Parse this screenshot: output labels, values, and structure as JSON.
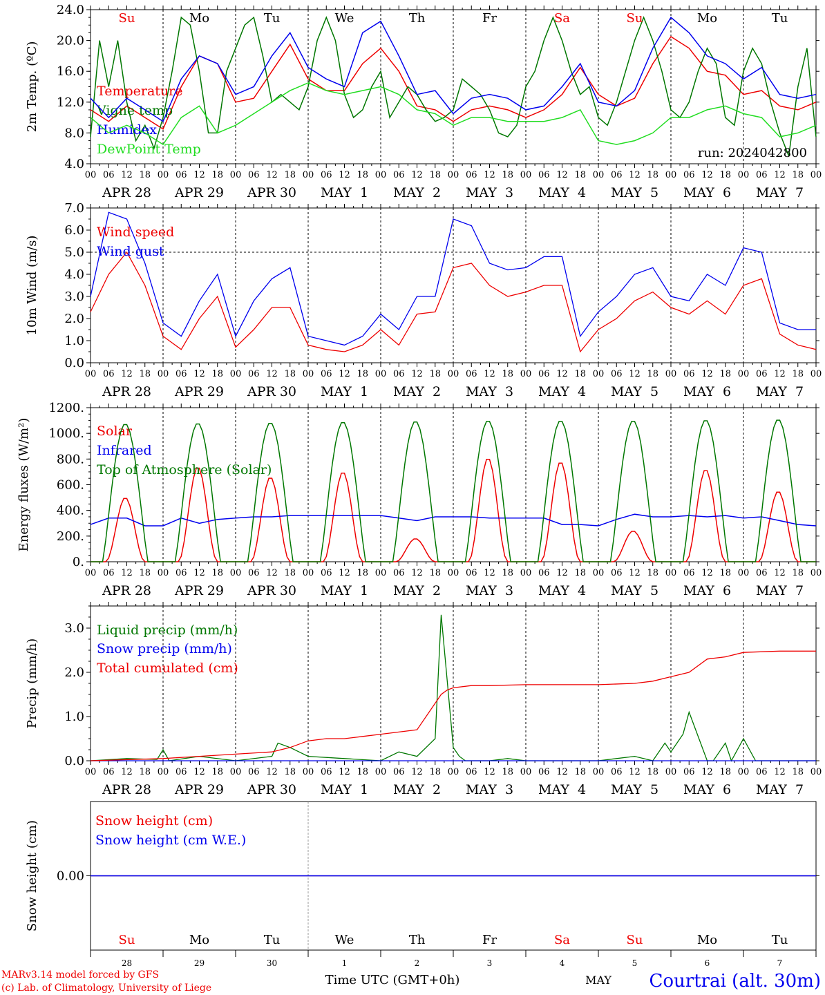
{
  "colors": {
    "red": "#ee0000",
    "green": "#007700",
    "blue": "#0000ee",
    "lightgreen": "#22dd22",
    "purple": "#7a2a7a",
    "axis": "#000000"
  },
  "days": [
    "Su",
    "Mo",
    "Tu",
    "We",
    "Th",
    "Fr",
    "Sa",
    "Su",
    "Mo",
    "Tu"
  ],
  "weekend_days": [
    0,
    6,
    7
  ],
  "date_labels": [
    "APR 28",
    "APR 29",
    "APR 30",
    "MAY  1",
    "MAY  2",
    "MAY  3",
    "MAY  4",
    "MAY  5",
    "MAY  6",
    "MAY  7"
  ],
  "hour_ticks": [
    "00",
    "06",
    "12",
    "18"
  ],
  "final_tick": "00",
  "day_numbers": [
    "28",
    "29",
    "30",
    "1",
    "2",
    "3",
    "4",
    "5",
    "6",
    "7"
  ],
  "bottom": {
    "credit1": "MARv3.14 model forced by GFS",
    "credit2": "(c) Lab. of Climatology, University of Liege",
    "time_label": "Time UTC (GMT+0h)",
    "month": "MAY",
    "station": "Courtrai (alt. 30m)"
  },
  "chart_data": [
    {
      "type": "line",
      "ylabel": "2m Temp. (ºC)",
      "ylim": [
        4,
        24
      ],
      "yticks": [
        "4.0",
        "8.0",
        "12.0",
        "16.0",
        "20.0",
        "24.0"
      ],
      "annotation": "run: 2024042800",
      "x_hours_from": "2024-04-28 00 UTC",
      "series": [
        {
          "name": "Temperature",
          "color": "red",
          "x": [
            0,
            6,
            12,
            18,
            24,
            30,
            36,
            42,
            48,
            54,
            60,
            66,
            72,
            78,
            84,
            90,
            96,
            102,
            108,
            114,
            120,
            126,
            132,
            138,
            144,
            150,
            156,
            162,
            168,
            174,
            180,
            186,
            192,
            198,
            204,
            210,
            216,
            222,
            228,
            234,
            240
          ],
          "values": [
            11,
            9.5,
            11.5,
            10,
            8.5,
            14,
            18,
            17,
            12,
            12.5,
            16,
            19.5,
            15,
            13.5,
            13.5,
            17,
            19,
            16,
            11.5,
            11,
            9.5,
            11,
            11.5,
            11,
            10,
            11,
            13,
            16.5,
            13,
            11.5,
            12.5,
            17,
            20.5,
            19,
            16,
            15.5,
            13,
            13.5,
            11.5,
            11,
            12
          ]
        },
        {
          "name": "Vigne temp",
          "color": "green",
          "x": [
            0,
            3,
            6,
            9,
            12,
            15,
            18,
            21,
            24,
            27,
            30,
            33,
            36,
            39,
            42,
            45,
            48,
            51,
            54,
            57,
            60,
            63,
            66,
            69,
            72,
            75,
            78,
            81,
            84,
            87,
            90,
            93,
            96,
            99,
            102,
            105,
            108,
            111,
            114,
            117,
            120,
            123,
            126,
            129,
            132,
            135,
            138,
            141,
            144,
            147,
            150,
            153,
            156,
            159,
            162,
            165,
            168,
            171,
            174,
            177,
            180,
            183,
            186,
            189,
            192,
            195,
            198,
            201,
            204,
            207,
            210,
            213,
            216,
            219,
            222,
            225,
            228,
            231,
            234,
            237,
            240
          ],
          "values": [
            7.5,
            20,
            14,
            20,
            12,
            7,
            9,
            6,
            10,
            16,
            23,
            22,
            16,
            8,
            8,
            16,
            19,
            22,
            23,
            18,
            12,
            13,
            12,
            11,
            14,
            20,
            23,
            20,
            13,
            10,
            11,
            14,
            16,
            10,
            12,
            14,
            13,
            11,
            9.5,
            10,
            11,
            15,
            14,
            13,
            11,
            8,
            7.5,
            9,
            14,
            16,
            20,
            23,
            20,
            16,
            13,
            14,
            10,
            9,
            12,
            16,
            20,
            23,
            20,
            16,
            11,
            10,
            12,
            16,
            19,
            17,
            10,
            9,
            16,
            19,
            17,
            12,
            8,
            5,
            14,
            19,
            7.5
          ]
        },
        {
          "name": "Humidex",
          "color": "blue",
          "x": [
            0,
            6,
            12,
            18,
            24,
            30,
            36,
            42,
            48,
            54,
            60,
            66,
            72,
            78,
            84,
            90,
            96,
            102,
            108,
            114,
            120,
            126,
            132,
            138,
            144,
            150,
            156,
            162,
            168,
            174,
            180,
            186,
            192,
            198,
            204,
            210,
            216,
            222,
            228,
            234,
            240
          ],
          "values": [
            12.5,
            10,
            12.5,
            11,
            9.5,
            15,
            18,
            17,
            13,
            14,
            18,
            21,
            16.5,
            15,
            14,
            21,
            22.5,
            18,
            13,
            13.5,
            10.5,
            12.5,
            13,
            12.5,
            11,
            11.5,
            14,
            17,
            12,
            11.5,
            13.5,
            19,
            23,
            21,
            18,
            17,
            15,
            16.5,
            13,
            12.5,
            13
          ]
        },
        {
          "name": "DewPoint Temp",
          "color": "lightgreen",
          "x": [
            0,
            6,
            12,
            18,
            24,
            30,
            36,
            42,
            48,
            54,
            60,
            66,
            72,
            78,
            84,
            90,
            96,
            102,
            108,
            114,
            120,
            126,
            132,
            138,
            144,
            150,
            156,
            162,
            168,
            174,
            180,
            186,
            192,
            198,
            204,
            210,
            216,
            222,
            228,
            234,
            240
          ],
          "values": [
            10,
            8,
            9,
            8,
            6.5,
            10,
            11.5,
            8,
            9,
            10.5,
            12,
            13.5,
            14.5,
            13.5,
            13,
            13.5,
            14,
            13,
            11,
            10.5,
            9,
            10,
            10,
            9.5,
            9.5,
            9.5,
            10,
            11,
            7,
            6.5,
            7,
            8,
            10,
            10,
            11,
            11.5,
            10.5,
            10,
            7.5,
            8,
            9
          ]
        }
      ]
    },
    {
      "type": "line",
      "ylabel": "10m Wind (m/s)",
      "ylim": [
        0,
        7
      ],
      "yticks": [
        "0.0",
        "1.0",
        "2.0",
        "3.0",
        "4.0",
        "5.0",
        "6.0",
        "7.0"
      ],
      "ref_line": 5,
      "x_hours_from": "2024-04-28 00 UTC",
      "series": [
        {
          "name": "Wind speed",
          "color": "red",
          "x": [
            0,
            6,
            12,
            18,
            24,
            30,
            36,
            42,
            48,
            54,
            60,
            66,
            72,
            78,
            84,
            90,
            96,
            102,
            108,
            114,
            120,
            126,
            132,
            138,
            144,
            150,
            156,
            162,
            168,
            174,
            180,
            186,
            192,
            198,
            204,
            210,
            216,
            222,
            228,
            234,
            240
          ],
          "values": [
            2.3,
            4,
            5,
            3.5,
            1.2,
            0.6,
            2,
            3,
            0.7,
            1.5,
            2.5,
            2.5,
            0.8,
            0.6,
            0.5,
            0.8,
            1.5,
            0.8,
            2.2,
            2.3,
            4.3,
            4.5,
            3.5,
            3,
            3.2,
            3.5,
            3.5,
            0.5,
            1.5,
            2,
            2.8,
            3.2,
            2.5,
            2.2,
            2.8,
            2.2,
            3.5,
            3.8,
            1.3,
            0.8,
            0.6
          ]
        },
        {
          "name": "Wind gust",
          "color": "blue",
          "x": [
            0,
            6,
            12,
            18,
            24,
            30,
            36,
            42,
            48,
            54,
            60,
            66,
            72,
            78,
            84,
            90,
            96,
            102,
            108,
            114,
            120,
            126,
            132,
            138,
            144,
            150,
            156,
            162,
            168,
            174,
            180,
            186,
            192,
            198,
            204,
            210,
            216,
            222,
            228,
            234,
            240
          ],
          "values": [
            3,
            6.8,
            6.5,
            4.5,
            1.8,
            1.2,
            2.8,
            4,
            1.2,
            2.8,
            3.8,
            4.3,
            1.2,
            1,
            0.8,
            1.2,
            2.2,
            1.5,
            3,
            3,
            6.5,
            6.2,
            4.5,
            4.2,
            4.3,
            4.8,
            4.8,
            1.2,
            2.3,
            3,
            4,
            4.3,
            3,
            2.8,
            4,
            3.5,
            5.2,
            5,
            1.8,
            1.5,
            1.5
          ]
        }
      ]
    },
    {
      "type": "line",
      "ylabel": "Energy fluxes (W/m²)",
      "ylim": [
        0,
        1200
      ],
      "yticks": [
        "0.",
        "200.",
        "400.",
        "600.",
        "800.",
        "1000.",
        "1200."
      ],
      "x_hours_from": "2024-04-28 00 UTC",
      "series": [
        {
          "name": "Solar",
          "color": "red",
          "daily_peak": [
            500,
            740,
            660,
            700,
            180,
            810,
            780,
            240,
            720,
            550
          ]
        },
        {
          "name": "Infrared",
          "color": "blue",
          "x": [
            0,
            6,
            12,
            18,
            24,
            30,
            36,
            42,
            48,
            54,
            60,
            66,
            72,
            78,
            84,
            90,
            96,
            102,
            108,
            114,
            120,
            126,
            132,
            138,
            144,
            150,
            156,
            162,
            168,
            174,
            180,
            186,
            192,
            198,
            204,
            210,
            216,
            222,
            228,
            234,
            240
          ],
          "values": [
            290,
            340,
            340,
            280,
            280,
            340,
            300,
            330,
            340,
            350,
            350,
            360,
            360,
            360,
            360,
            360,
            360,
            340,
            320,
            350,
            350,
            350,
            340,
            340,
            340,
            340,
            290,
            290,
            280,
            330,
            370,
            350,
            350,
            360,
            350,
            360,
            340,
            350,
            320,
            290,
            280
          ]
        },
        {
          "name": "Top of Atmosphere (Solar)",
          "color": "green",
          "daily_peak": [
            1075,
            1080,
            1085,
            1090,
            1095,
            1100,
            1100,
            1100,
            1105,
            1110
          ]
        }
      ]
    },
    {
      "type": "line",
      "ylabel": "Precip (mm/h)",
      "ylim": [
        0,
        3.5
      ],
      "yticks": [
        "0.0",
        "1.0",
        "2.0",
        "3.0"
      ],
      "x_hours_from": "2024-04-28 00 UTC",
      "series": [
        {
          "name": "Liquid precip (mm/h)",
          "color": "green",
          "x": [
            0,
            12,
            22,
            24,
            26,
            36,
            48,
            60,
            62,
            66,
            72,
            84,
            96,
            102,
            108,
            114,
            116,
            118,
            120,
            121,
            122,
            124,
            126,
            132,
            138,
            144,
            150,
            160,
            168,
            180,
            186,
            190,
            192,
            196,
            198,
            204,
            206,
            210,
            212,
            216,
            220,
            222,
            224,
            230,
            240
          ],
          "values": [
            0,
            0.05,
            0.03,
            0.25,
            0,
            0.1,
            0,
            0.1,
            0.4,
            0.3,
            0.1,
            0.05,
            0,
            0.2,
            0.1,
            0.5,
            3.3,
            1.8,
            0.3,
            0.2,
            0.1,
            0,
            0,
            0,
            0.05,
            0,
            0,
            0,
            0,
            0.1,
            0,
            0.4,
            0.2,
            0.6,
            1.1,
            0,
            0,
            0.4,
            0,
            0.5,
            0,
            0,
            0,
            0,
            0
          ]
        },
        {
          "name": "Snow precip (mm/h)",
          "color": "blue",
          "x": [
            0,
            240
          ],
          "values": [
            0,
            0
          ]
        },
        {
          "name": "Total cumulated (cm)",
          "color": "red",
          "x": [
            0,
            24,
            36,
            48,
            60,
            66,
            72,
            78,
            84,
            90,
            96,
            102,
            108,
            114,
            116,
            118,
            120,
            126,
            132,
            144,
            150,
            168,
            180,
            186,
            192,
            198,
            204,
            210,
            216,
            228,
            240
          ],
          "values": [
            0,
            0.05,
            0.1,
            0.15,
            0.2,
            0.3,
            0.45,
            0.5,
            0.5,
            0.55,
            0.6,
            0.65,
            0.7,
            1.3,
            1.5,
            1.6,
            1.65,
            1.7,
            1.7,
            1.72,
            1.72,
            1.72,
            1.75,
            1.8,
            1.9,
            2.0,
            2.3,
            2.35,
            2.45,
            2.48,
            2.48
          ]
        }
      ]
    },
    {
      "type": "line",
      "ylabel": "Snow height (cm)",
      "ylim": [
        -1,
        1
      ],
      "yticks": [
        "0.00"
      ],
      "x_hours_from": "2024-04-28 00 UTC",
      "series": [
        {
          "name": "Snow height (cm)",
          "color": "red",
          "x": [
            0,
            240
          ],
          "values": [
            0,
            0
          ]
        },
        {
          "name": "Snow height (cm W.E.)",
          "color": "blue",
          "x": [
            0,
            240
          ],
          "values": [
            0,
            0
          ]
        }
      ]
    }
  ]
}
